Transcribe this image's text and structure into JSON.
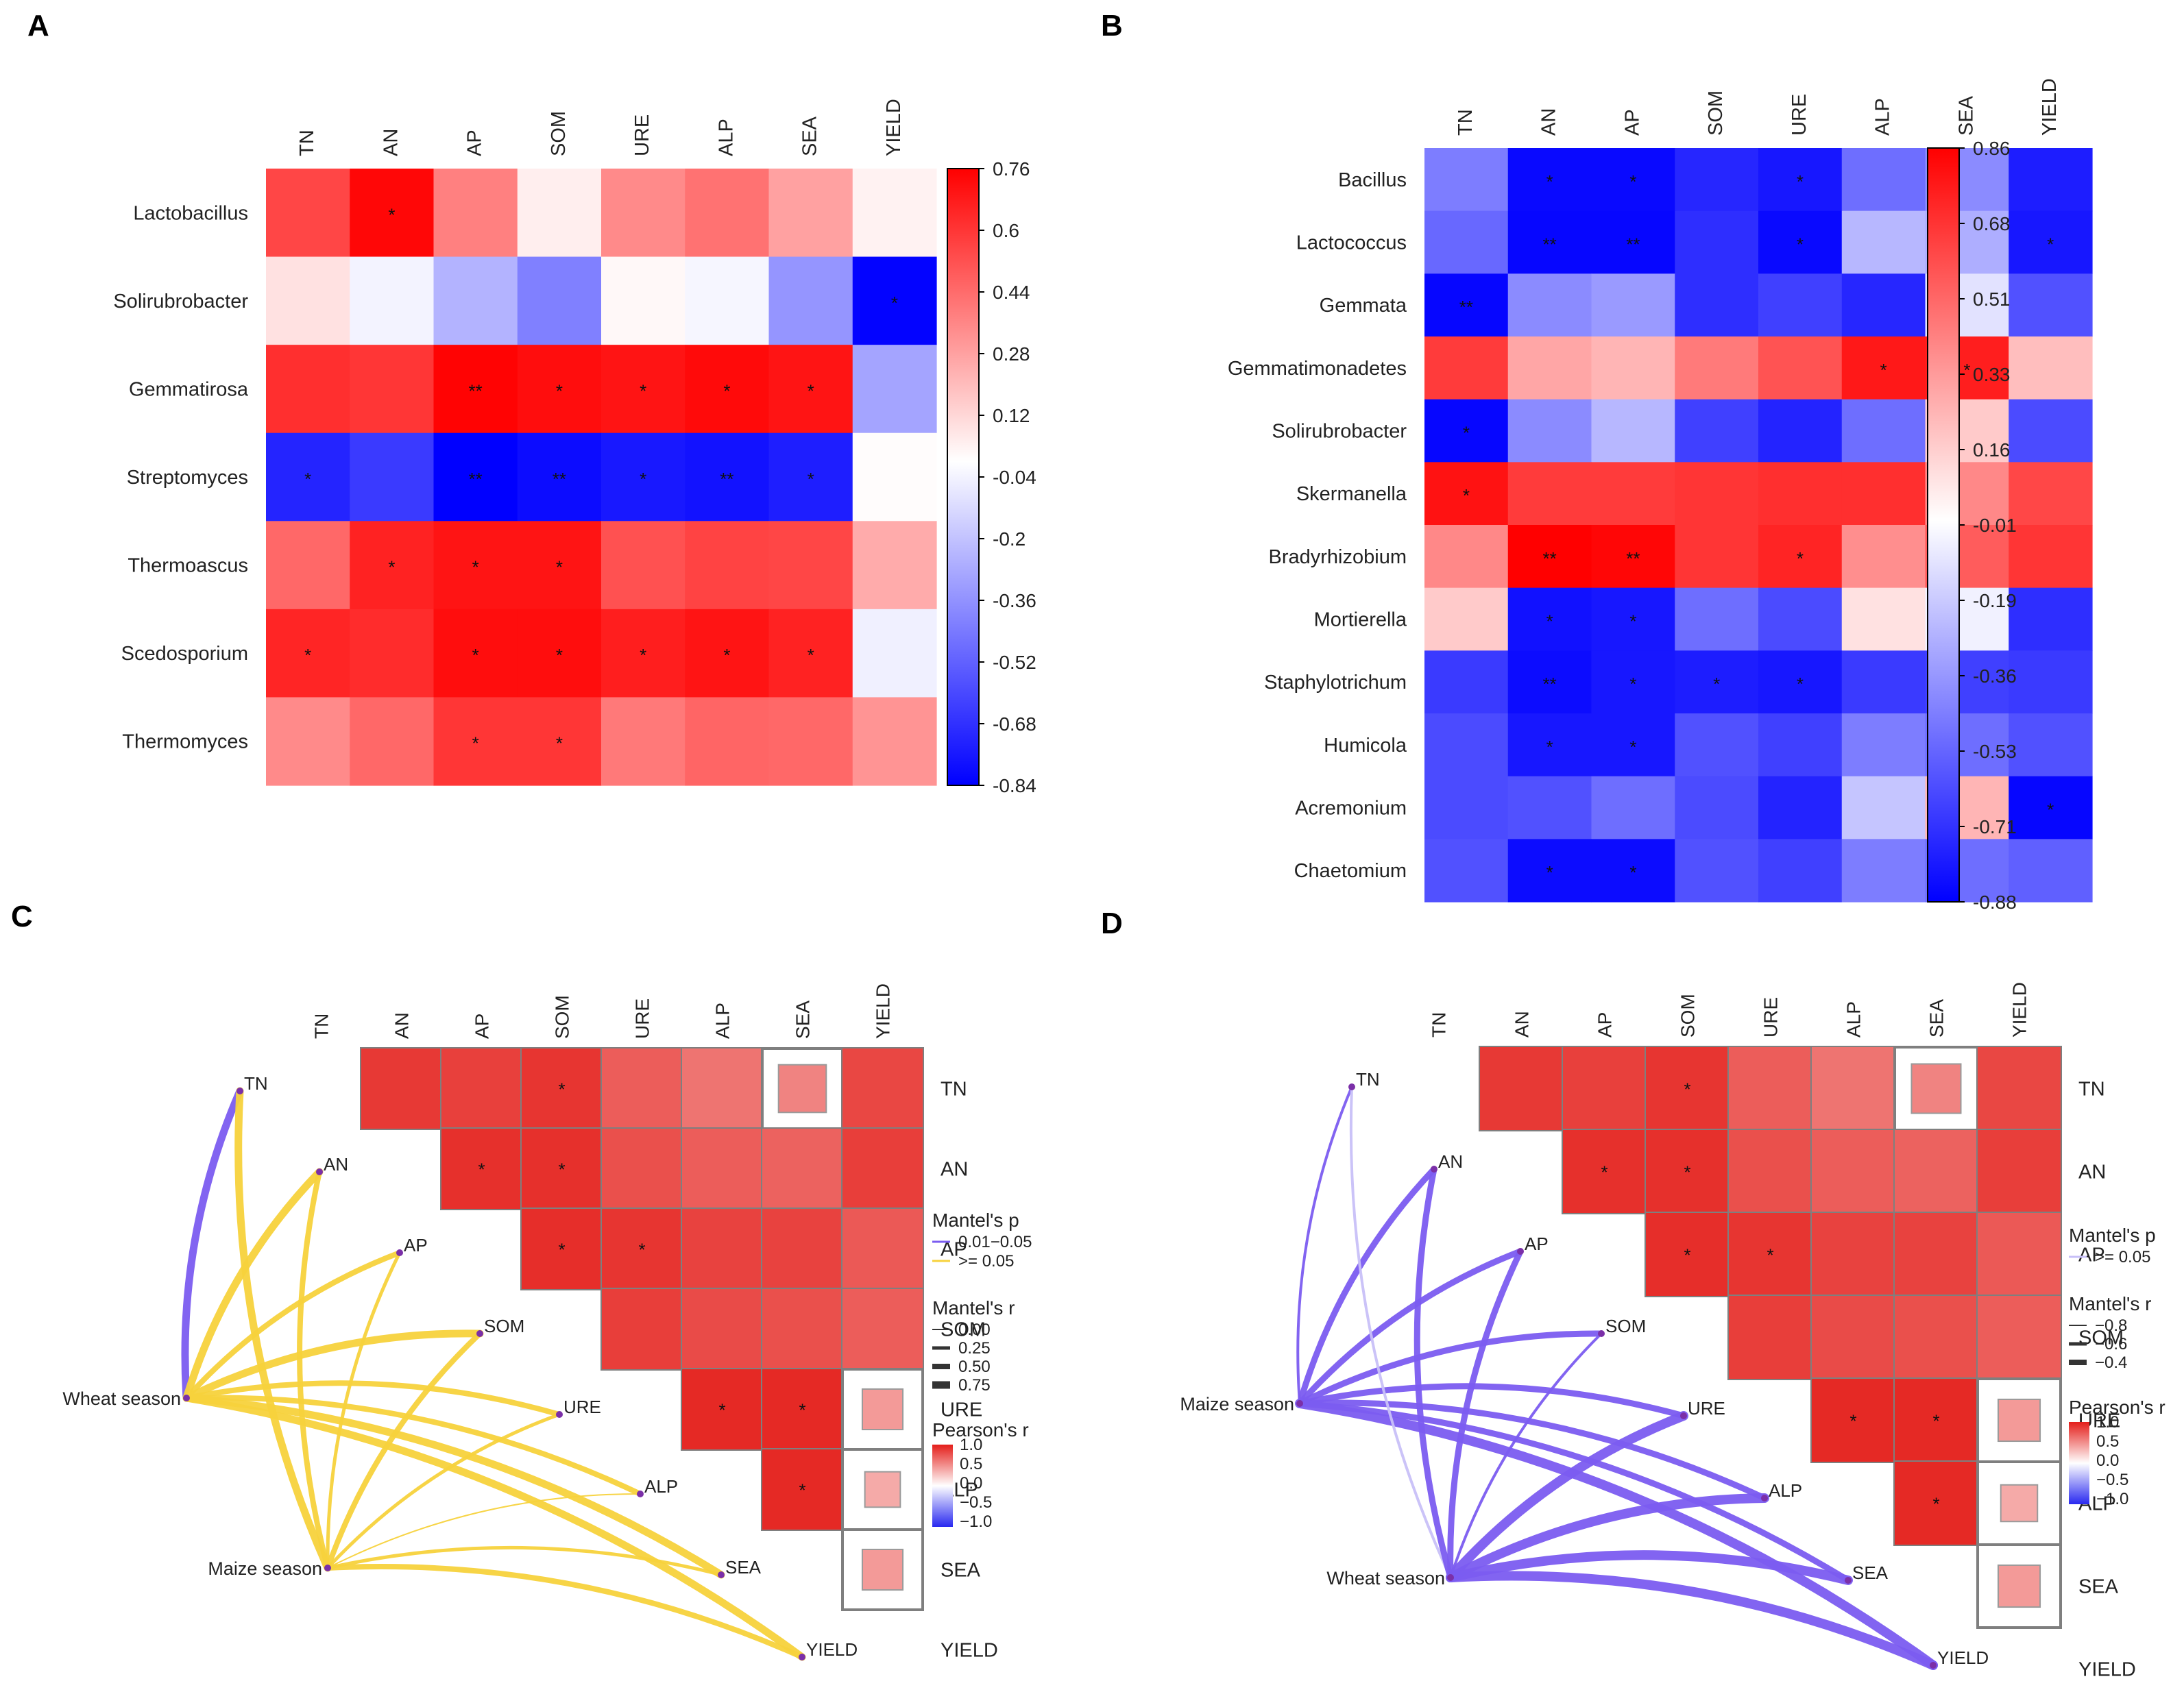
{
  "panel_labels": [
    "A",
    "B",
    "C",
    "D"
  ],
  "chart_data": [
    {
      "id": "A",
      "type": "heatmap",
      "columns": [
        "TN",
        "AN",
        "AP",
        "SOM",
        "URE",
        "ALP",
        "SEA",
        "YIELD"
      ],
      "rows": [
        "Lactobacillus",
        "Solirubrobacter",
        "Gemmatirosa",
        "Streptomyces",
        "Thermoascus",
        "Scedosporium",
        "Thermomyces"
      ],
      "values": [
        [
          0.55,
          0.74,
          0.38,
          0.05,
          0.35,
          0.42,
          0.28,
          0.04
        ],
        [
          0.09,
          -0.04,
          -0.25,
          -0.42,
          0.02,
          -0.03,
          -0.35,
          -0.83
        ],
        [
          0.62,
          0.6,
          0.75,
          0.72,
          0.7,
          0.73,
          0.7,
          -0.3
        ],
        [
          -0.72,
          -0.65,
          -0.84,
          -0.8,
          -0.76,
          -0.78,
          -0.74,
          0.01
        ],
        [
          0.45,
          0.66,
          0.7,
          0.7,
          0.52,
          0.56,
          0.55,
          0.25
        ],
        [
          0.65,
          0.63,
          0.72,
          0.72,
          0.67,
          0.7,
          0.66,
          -0.05
        ],
        [
          0.35,
          0.45,
          0.6,
          0.6,
          0.4,
          0.46,
          0.45,
          0.32
        ]
      ],
      "stars": [
        [
          "",
          "*",
          "",
          "",
          "",
          "",
          "",
          ""
        ],
        [
          "",
          "",
          "",
          "",
          "",
          "",
          "",
          "*"
        ],
        [
          "",
          "",
          "**",
          "*",
          "*",
          "*",
          "*",
          ""
        ],
        [
          "*",
          "",
          "**",
          "**",
          "*",
          "**",
          "*",
          ""
        ],
        [
          "",
          "*",
          "*",
          "*",
          "",
          "",
          "",
          ""
        ],
        [
          "*",
          "",
          "*",
          "*",
          "*",
          "*",
          "*",
          ""
        ],
        [
          "",
          "",
          "*",
          "*",
          "",
          "",
          "",
          ""
        ]
      ],
      "colorbar": {
        "min": -0.84,
        "max": 0.76,
        "ticks": [
          "0.76",
          "0.6",
          "0.44",
          "0.28",
          "0.12",
          "-0.04",
          "-0.2",
          "-0.36",
          "-0.52",
          "-0.68",
          "-0.84"
        ]
      }
    },
    {
      "id": "B",
      "type": "heatmap",
      "columns": [
        "TN",
        "AN",
        "AP",
        "SOM",
        "URE",
        "ALP",
        "SEA",
        "YIELD"
      ],
      "rows": [
        "Bacillus",
        "Lactococcus",
        "Gemmata",
        "Gemmatimonadetes",
        "Solirubrobacter",
        "Skermanella",
        "Bradyrhizobium",
        "Mortierella",
        "Staphylotrichum",
        "Humicola",
        "Acremonium",
        "Chaetomium"
      ],
      "values": [
        [
          -0.45,
          -0.85,
          -0.85,
          -0.75,
          -0.8,
          -0.5,
          -0.4,
          -0.78
        ],
        [
          -0.52,
          -0.86,
          -0.86,
          -0.72,
          -0.85,
          -0.25,
          -0.28,
          -0.8
        ],
        [
          -0.86,
          -0.4,
          -0.35,
          -0.72,
          -0.66,
          -0.75,
          -0.1,
          -0.6
        ],
        [
          0.66,
          0.3,
          0.25,
          0.45,
          0.58,
          0.78,
          0.76,
          0.22
        ],
        [
          -0.86,
          -0.4,
          -0.25,
          -0.66,
          -0.76,
          -0.5,
          0.18,
          -0.62
        ],
        [
          0.8,
          0.66,
          0.66,
          0.68,
          0.7,
          0.7,
          0.4,
          0.62
        ],
        [
          0.4,
          0.86,
          0.84,
          0.68,
          0.74,
          0.38,
          0.55,
          0.68
        ],
        [
          0.18,
          -0.82,
          -0.8,
          -0.5,
          -0.62,
          0.1,
          -0.05,
          -0.72
        ],
        [
          -0.68,
          -0.84,
          -0.8,
          -0.78,
          -0.8,
          -0.68,
          -0.66,
          -0.68
        ],
        [
          -0.62,
          -0.8,
          -0.8,
          -0.6,
          -0.66,
          -0.45,
          -0.5,
          -0.6
        ],
        [
          -0.62,
          -0.6,
          -0.5,
          -0.62,
          -0.76,
          -0.2,
          0.25,
          -0.86
        ],
        [
          -0.6,
          -0.84,
          -0.84,
          -0.6,
          -0.66,
          -0.45,
          -0.5,
          -0.55
        ]
      ],
      "stars": [
        [
          "",
          "*",
          "*",
          "",
          "*",
          "",
          "",
          ""
        ],
        [
          "",
          "**",
          "**",
          "",
          "*",
          "",
          "",
          "*"
        ],
        [
          "**",
          "",
          "",
          "",
          "",
          "",
          "",
          ""
        ],
        [
          "",
          "",
          "",
          "",
          "",
          "*",
          "*",
          ""
        ],
        [
          "*",
          "",
          "",
          "",
          "",
          "",
          "",
          ""
        ],
        [
          "*",
          "",
          "",
          "",
          "",
          "",
          "",
          ""
        ],
        [
          "",
          "**",
          "**",
          "",
          "*",
          "",
          "",
          ""
        ],
        [
          "",
          "*",
          "*",
          "",
          "",
          "",
          "",
          ""
        ],
        [
          "",
          "**",
          "*",
          "*",
          "*",
          "",
          "",
          ""
        ],
        [
          "",
          "*",
          "*",
          "",
          "",
          "",
          "",
          ""
        ],
        [
          "",
          "",
          "",
          "",
          "",
          "",
          "",
          "*"
        ],
        [
          "",
          "*",
          "*",
          "",
          "",
          "",
          "",
          ""
        ]
      ],
      "colorbar": {
        "min": -0.88,
        "max": 0.86,
        "ticks": [
          "0.86",
          "0.68",
          "0.51",
          "0.33",
          "0.16",
          "-0.01",
          "-0.19",
          "-0.36",
          "-0.53",
          "-0.71",
          "-0.88"
        ]
      }
    },
    {
      "id": "C",
      "type": "heatmap",
      "subtype": "mantel_correlogram",
      "variables": [
        "TN",
        "AN",
        "AP",
        "SOM",
        "URE",
        "ALP",
        "SEA",
        "YIELD"
      ],
      "pearson_r": [
        [
          null,
          0.88,
          0.85,
          0.9,
          0.72,
          0.62,
          0.55,
          0.82
        ],
        [
          null,
          null,
          0.92,
          0.92,
          0.78,
          0.72,
          0.7,
          0.86
        ],
        [
          null,
          null,
          null,
          0.93,
          0.9,
          0.84,
          0.84,
          0.74
        ],
        [
          null,
          null,
          null,
          null,
          0.86,
          0.8,
          0.78,
          0.72
        ],
        [
          null,
          null,
          null,
          null,
          null,
          0.95,
          0.95,
          0.45
        ],
        [
          null,
          null,
          null,
          null,
          null,
          null,
          0.95,
          0.38
        ],
        [
          null,
          null,
          null,
          null,
          null,
          null,
          null,
          0.45
        ]
      ],
      "corr_stars": [
        [
          "",
          "",
          "",
          "*",
          "",
          "",
          "",
          ""
        ],
        [
          "",
          "",
          "*",
          "*",
          "",
          "",
          "",
          ""
        ],
        [
          "",
          "",
          "",
          "*",
          "*",
          "",
          "",
          ""
        ],
        [
          "",
          "",
          "",
          "",
          "",
          "",
          "",
          ""
        ],
        [
          "",
          "",
          "",
          "",
          "",
          "*",
          "*",
          ""
        ],
        [
          "",
          "",
          "",
          "",
          "",
          "",
          "*",
          ""
        ],
        [
          "",
          "",
          "",
          "",
          "",
          "",
          "",
          ""
        ]
      ],
      "sources": [
        "Wheat season",
        "Maize season"
      ],
      "links": [
        {
          "from": "Wheat season",
          "to": "TN",
          "p": "0.01-0.05",
          "r": 0.75
        },
        {
          "from": "Wheat season",
          "to": "AN",
          "p": ">= 0.05",
          "r": 0.75
        },
        {
          "from": "Wheat season",
          "to": "AP",
          "p": ">= 0.05",
          "r": 0.5
        },
        {
          "from": "Wheat season",
          "to": "SOM",
          "p": ">= 0.05",
          "r": 0.75
        },
        {
          "from": "Wheat season",
          "to": "URE",
          "p": ">= 0.05",
          "r": 0.5
        },
        {
          "from": "Wheat season",
          "to": "ALP",
          "p": ">= 0.05",
          "r": 0.5
        },
        {
          "from": "Wheat season",
          "to": "SEA",
          "p": ">= 0.05",
          "r": 0.75
        },
        {
          "from": "Wheat season",
          "to": "YIELD",
          "p": ">= 0.05",
          "r": 0.75
        },
        {
          "from": "Maize season",
          "to": "TN",
          "p": ">= 0.05",
          "r": 0.75
        },
        {
          "from": "Maize season",
          "to": "AN",
          "p": ">= 0.05",
          "r": 0.5
        },
        {
          "from": "Maize season",
          "to": "AP",
          "p": ">= 0.05",
          "r": 0.25
        },
        {
          "from": "Maize season",
          "to": "SOM",
          "p": ">= 0.05",
          "r": 0.5
        },
        {
          "from": "Maize season",
          "to": "URE",
          "p": ">= 0.05",
          "r": 0.25
        },
        {
          "from": "Maize season",
          "to": "ALP",
          "p": ">= 0.05",
          "r": 0.0
        },
        {
          "from": "Maize season",
          "to": "SEA",
          "p": ">= 0.05",
          "r": 0.25
        },
        {
          "from": "Maize season",
          "to": "YIELD",
          "p": ">= 0.05",
          "r": 0.5
        }
      ],
      "legend": {
        "mantel_p_title": "Mantel's p",
        "mantel_p_items": [
          {
            "label": "0.01−0.05",
            "color": "#7b5cf0"
          },
          {
            "label": ">= 0.05",
            "color": "#f7d23c"
          }
        ],
        "mantel_r_title": "Mantel's r",
        "mantel_r_items": [
          "0.00",
          "0.25",
          "0.50",
          "0.75"
        ],
        "pearson_title": "Pearson's r",
        "pearson_ticks": [
          "1.0",
          "0.5",
          "0.0",
          "−0.5",
          "−1.0"
        ]
      }
    },
    {
      "id": "D",
      "type": "heatmap",
      "subtype": "mantel_correlogram",
      "variables": [
        "TN",
        "AN",
        "AP",
        "SOM",
        "URE",
        "ALP",
        "SEA",
        "YIELD"
      ],
      "pearson_r": [
        [
          null,
          0.88,
          0.85,
          0.9,
          0.72,
          0.62,
          0.55,
          0.82
        ],
        [
          null,
          null,
          0.92,
          0.92,
          0.78,
          0.72,
          0.7,
          0.86
        ],
        [
          null,
          null,
          null,
          0.93,
          0.9,
          0.84,
          0.84,
          0.74
        ],
        [
          null,
          null,
          null,
          null,
          0.86,
          0.8,
          0.78,
          0.72
        ],
        [
          null,
          null,
          null,
          null,
          null,
          0.95,
          0.95,
          0.45
        ],
        [
          null,
          null,
          null,
          null,
          null,
          null,
          0.95,
          0.38
        ],
        [
          null,
          null,
          null,
          null,
          null,
          null,
          null,
          0.45
        ]
      ],
      "corr_stars": [
        [
          "",
          "",
          "",
          "*",
          "",
          "",
          "",
          ""
        ],
        [
          "",
          "",
          "*",
          "*",
          "",
          "",
          "",
          ""
        ],
        [
          "",
          "",
          "",
          "*",
          "*",
          "",
          "",
          ""
        ],
        [
          "",
          "",
          "",
          "",
          "",
          "",
          "",
          ""
        ],
        [
          "",
          "",
          "",
          "",
          "",
          "*",
          "*",
          ""
        ],
        [
          "",
          "",
          "",
          "",
          "",
          "",
          "*",
          ""
        ],
        [
          "",
          "",
          "",
          "",
          "",
          "",
          "",
          ""
        ]
      ],
      "sources": [
        "Maize season",
        "Wheat season"
      ],
      "links": [
        {
          "from": "Maize season",
          "to": "TN",
          "p": ">= 0.05",
          "r": -0.4
        },
        {
          "from": "Maize season",
          "to": "AN",
          "p": ">= 0.05",
          "r": -0.6
        },
        {
          "from": "Maize season",
          "to": "AP",
          "p": ">= 0.05",
          "r": -0.6
        },
        {
          "from": "Maize season",
          "to": "SOM",
          "p": ">= 0.05",
          "r": -0.6
        },
        {
          "from": "Maize season",
          "to": "URE",
          "p": ">= 0.05",
          "r": -0.6
        },
        {
          "from": "Maize season",
          "to": "ALP",
          "p": ">= 0.05",
          "r": -0.6
        },
        {
          "from": "Maize season",
          "to": "SEA",
          "p": ">= 0.05",
          "r": -0.6
        },
        {
          "from": "Maize season",
          "to": "YIELD",
          "p": ">= 0.05",
          "r": -0.8
        },
        {
          "from": "Wheat season",
          "to": "TN",
          "p": ">= 0.05",
          "r": -0.4
        },
        {
          "from": "Wheat season",
          "to": "AN",
          "p": ">= 0.05",
          "r": -0.6
        },
        {
          "from": "Wheat season",
          "to": "AP",
          "p": ">= 0.05",
          "r": -0.6
        },
        {
          "from": "Wheat season",
          "to": "SOM",
          "p": ">= 0.05",
          "r": -0.4
        },
        {
          "from": "Wheat season",
          "to": "URE",
          "p": ">= 0.05",
          "r": -0.8
        },
        {
          "from": "Wheat season",
          "to": "ALP",
          "p": ">= 0.05",
          "r": -0.8
        },
        {
          "from": "Wheat season",
          "to": "SEA",
          "p": ">= 0.05",
          "r": -0.8
        },
        {
          "from": "Wheat season",
          "to": "YIELD",
          "p": ">= 0.05",
          "r": -0.8
        }
      ],
      "legend": {
        "mantel_p_title": "Mantel's p",
        "mantel_p_items": [
          {
            "label": ">= 0.05",
            "color": "#c8c0f8"
          }
        ],
        "mantel_r_title": "Mantel's r",
        "mantel_r_items": [
          "−0.8",
          "−0.6",
          "−0.4"
        ],
        "pearson_title": "Pearson's r",
        "pearson_ticks": [
          "1.0",
          "0.5",
          "0.0",
          "−0.5",
          "−1.0"
        ]
      }
    }
  ]
}
